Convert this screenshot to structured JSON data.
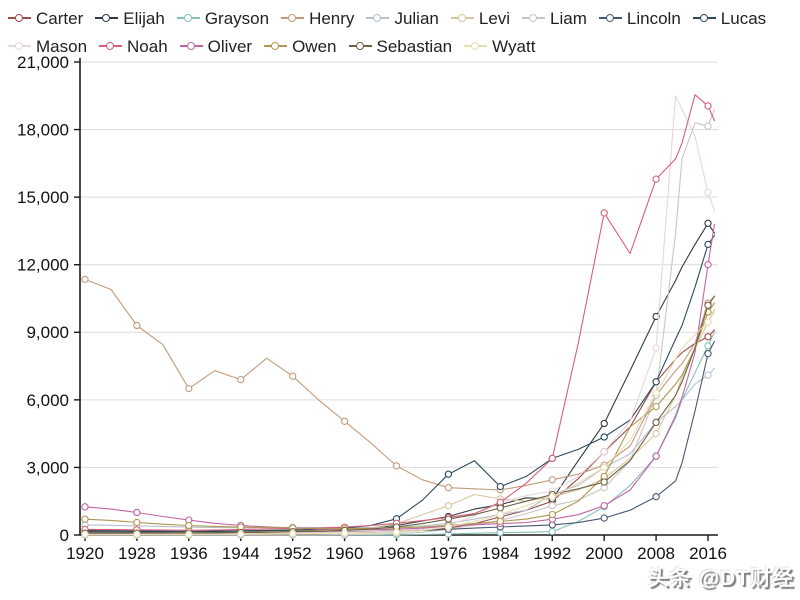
{
  "watermark": {
    "text": "头条 @DT财经"
  },
  "chart_data": {
    "type": "line",
    "title": "",
    "xlabel": "",
    "ylabel": "",
    "ylim": [
      0,
      21000
    ],
    "yticks": [
      0,
      3000,
      6000,
      9000,
      12000,
      15000,
      18000,
      21000
    ],
    "xticks": [
      1920,
      1928,
      1936,
      1944,
      1952,
      1960,
      1968,
      1976,
      1984,
      1992,
      2000,
      2008,
      2016
    ],
    "marker_years": [
      1920,
      1928,
      1936,
      1944,
      1952,
      1960,
      1968,
      1976,
      1984,
      1992,
      2000,
      2008,
      2016
    ],
    "grid": true,
    "legend_position": "top-left",
    "axis_color": "#1a1a1a",
    "grid_color": "#dcdcdc",
    "x_years": [
      1920,
      1924,
      1928,
      1932,
      1936,
      1940,
      1944,
      1948,
      1952,
      1956,
      1960,
      1964,
      1968,
      1972,
      1976,
      1980,
      1984,
      1988,
      1992,
      1996,
      2000,
      2004,
      2008,
      2011,
      2012,
      2014,
      2016,
      2017
    ],
    "series": [
      {
        "name": "Carter",
        "color": "#9c4a4a",
        "values": [
          70,
          70,
          70,
          70,
          65,
          70,
          80,
          90,
          100,
          110,
          120,
          135,
          155,
          205,
          305,
          505,
          805,
          1100,
          1500,
          2500,
          3700,
          4800,
          6800,
          7800,
          8100,
          8500,
          8800,
          9100
        ]
      },
      {
        "name": "Elijah",
        "color": "#2e3a46",
        "values": [
          150,
          140,
          130,
          130,
          125,
          130,
          145,
          165,
          185,
          205,
          250,
          310,
          420,
          620,
          820,
          1150,
          1350,
          1650,
          1600,
          3300,
          4950,
          7300,
          9700,
          11300,
          11900,
          12900,
          13840,
          13400
        ]
      },
      {
        "name": "Grayson",
        "color": "#86c1b9",
        "values": [
          0,
          0,
          0,
          0,
          0,
          0,
          0,
          0,
          0,
          0,
          0,
          0,
          10,
          20,
          40,
          80,
          100,
          120,
          150,
          600,
          1250,
          2200,
          3500,
          5200,
          6000,
          7200,
          8400,
          9000
        ]
      },
      {
        "name": "Henry",
        "color": "#c29b7c",
        "values": [
          11350,
          10900,
          9300,
          8450,
          6500,
          7300,
          6900,
          7850,
          7050,
          6000,
          5050,
          4100,
          3070,
          2450,
          2100,
          2050,
          2000,
          2200,
          2450,
          2700,
          3100,
          3950,
          6200,
          7300,
          7600,
          8500,
          10300,
          10600
        ]
      },
      {
        "name": "Julian",
        "color": "#b5c1cc",
        "values": [
          450,
          430,
          400,
          380,
          350,
          330,
          320,
          330,
          340,
          330,
          325,
          335,
          355,
          405,
          505,
          705,
          905,
          1100,
          1800,
          2200,
          3000,
          3600,
          5000,
          5700,
          6000,
          6700,
          7100,
          7400
        ]
      },
      {
        "name": "Levi",
        "color": "#d8c69e",
        "values": [
          120,
          110,
          105,
          100,
          100,
          110,
          125,
          145,
          165,
          185,
          225,
          305,
          505,
          905,
          1300,
          1800,
          1600,
          1500,
          1700,
          2000,
          2500,
          3400,
          4500,
          6200,
          7000,
          8300,
          9450,
          10000
        ]
      },
      {
        "name": "Liam",
        "color": "#c9c6c2",
        "values": [
          0,
          0,
          0,
          0,
          0,
          0,
          0,
          0,
          0,
          0,
          20,
          30,
          60,
          120,
          260,
          450,
          650,
          950,
          1300,
          1550,
          2100,
          3300,
          6200,
          13400,
          16700,
          18300,
          18150,
          18900
        ]
      },
      {
        "name": "Lincoln",
        "color": "#475871",
        "values": [
          120,
          115,
          105,
          100,
          95,
          100,
          110,
          120,
          130,
          140,
          150,
          160,
          180,
          205,
          255,
          305,
          355,
          405,
          450,
          550,
          750,
          1100,
          1700,
          2400,
          3200,
          5500,
          8050,
          8600
        ]
      },
      {
        "name": "Lucas",
        "color": "#2c4a5a",
        "values": [
          200,
          190,
          180,
          170,
          165,
          175,
          185,
          205,
          225,
          255,
          305,
          420,
          720,
          1550,
          2700,
          3300,
          2150,
          2600,
          3400,
          3800,
          4350,
          5100,
          6800,
          8700,
          9300,
          11000,
          12900,
          13300
        ]
      },
      {
        "name": "Mason",
        "color": "#e6d5d9",
        "values": [
          90,
          85,
          80,
          80,
          75,
          80,
          90,
          100,
          110,
          120,
          130,
          145,
          170,
          260,
          420,
          850,
          1450,
          1750,
          1950,
          2600,
          3700,
          5050,
          8300,
          19500,
          18900,
          17700,
          15200,
          14400
        ]
      },
      {
        "name": "Noah",
        "color": "#d85f78",
        "values": [
          250,
          240,
          230,
          220,
          210,
          220,
          240,
          270,
          290,
          310,
          350,
          420,
          520,
          640,
          780,
          950,
          1450,
          2300,
          3400,
          8500,
          14300,
          12500,
          15800,
          16700,
          17400,
          19550,
          19050,
          18400
        ]
      },
      {
        "name": "Oliver",
        "color": "#c263a5",
        "values": [
          1250,
          1150,
          1000,
          820,
          660,
          520,
          420,
          360,
          310,
          260,
          225,
          235,
          255,
          305,
          400,
          455,
          505,
          555,
          700,
          900,
          1300,
          2000,
          3500,
          5300,
          6100,
          8100,
          12000,
          13800
        ]
      },
      {
        "name": "Owen",
        "color": "#b0974e",
        "values": [
          700,
          650,
          560,
          480,
          420,
          380,
          350,
          330,
          310,
          295,
          285,
          295,
          315,
          355,
          425,
          505,
          605,
          705,
          905,
          1500,
          2600,
          4800,
          5700,
          6700,
          7100,
          8300,
          9900,
          10300
        ]
      },
      {
        "name": "Sebastian",
        "color": "#6e6040",
        "values": [
          80,
          80,
          80,
          80,
          85,
          90,
          105,
          125,
          145,
          165,
          205,
          265,
          355,
          505,
          705,
          905,
          1200,
          1500,
          1800,
          2050,
          2350,
          3300,
          5000,
          6200,
          6800,
          8300,
          10200,
          10600
        ]
      },
      {
        "name": "Wyatt",
        "color": "#e8dcae",
        "values": [
          30,
          30,
          30,
          30,
          30,
          35,
          45,
          55,
          65,
          75,
          85,
          95,
          125,
          205,
          355,
          605,
          905,
          1300,
          1700,
          2300,
          3000,
          4200,
          6300,
          7800,
          8300,
          8900,
          9450,
          9900
        ]
      }
    ]
  }
}
